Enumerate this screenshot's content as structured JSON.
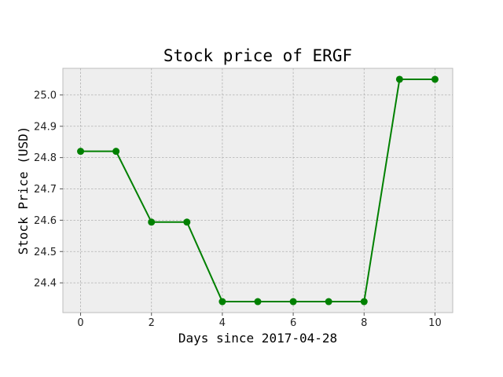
{
  "chart_data": {
    "type": "line",
    "title": "Stock price of ERGF",
    "xlabel": "Days since 2017-04-28",
    "ylabel": "Stock Price (USD)",
    "x": [
      0,
      1,
      2,
      3,
      4,
      5,
      6,
      7,
      8,
      9,
      10
    ],
    "series": [
      {
        "values": [
          24.82,
          24.82,
          24.594,
          24.594,
          24.34,
          24.34,
          24.34,
          24.34,
          24.34,
          25.05,
          25.05
        ],
        "color": "#008000"
      }
    ],
    "xlim": [
      -0.5,
      10.5
    ],
    "ylim": [
      24.305,
      25.085
    ],
    "xticks": [
      0,
      2,
      4,
      6,
      8,
      10
    ],
    "yticks": [
      24.4,
      24.5,
      24.6,
      24.7,
      24.8,
      24.9,
      25.0
    ],
    "grid": true,
    "marker": "circle"
  }
}
